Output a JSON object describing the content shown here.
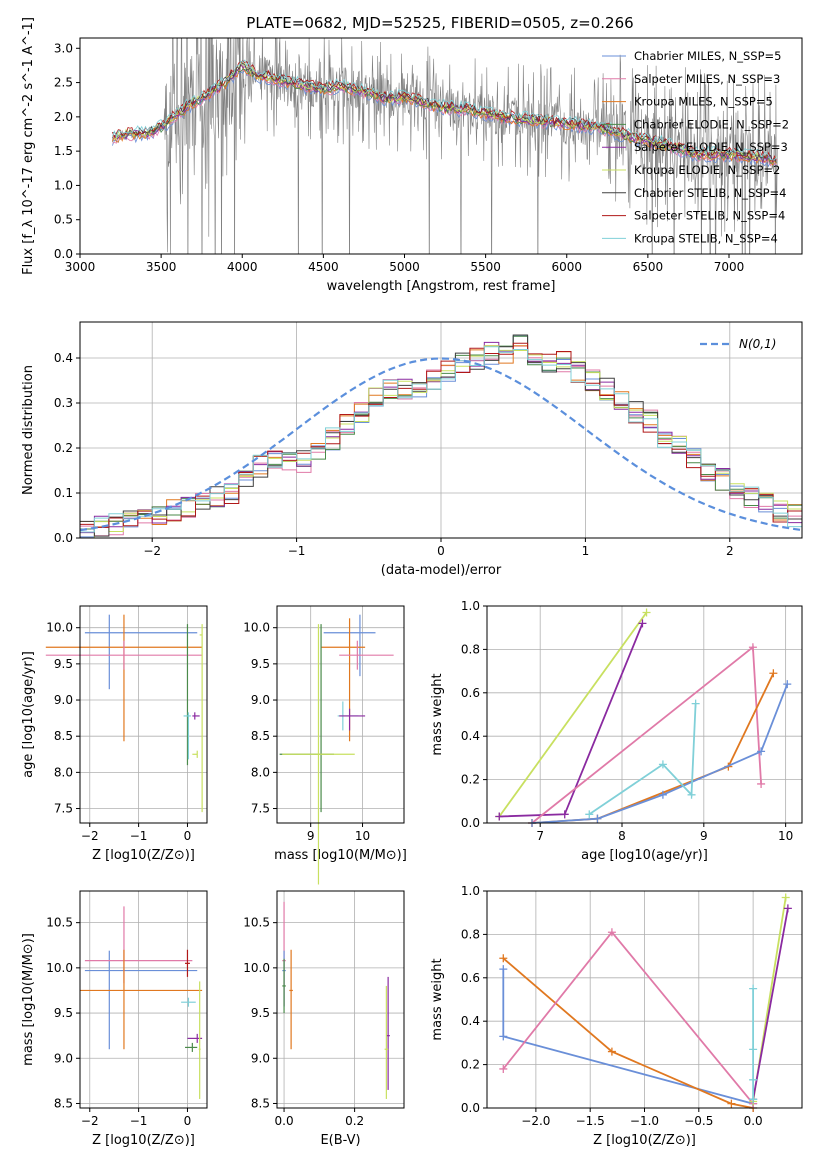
{
  "figure_title": "PLATE=0682, MJD=52525, FIBERID=0505, z=0.266",
  "colors": {
    "cm": "#6a8fd8",
    "sm": "#e07aa8",
    "km": "#e07820",
    "ce": "#4a8a4a",
    "se": "#8a2aa0",
    "ke": "#c8e060",
    "cs": "#404040",
    "ss": "#b01818",
    "ks": "#80d0d8",
    "dashed": "#5b8fdc",
    "data": "#808080"
  },
  "chart_data": [
    {
      "type": "line",
      "title": "PLATE=0682, MJD=52525, FIBERID=0505, z=0.266",
      "xlabel": "wavelength [Angstrom, rest frame]",
      "ylabel": "Flux [f_λ 10^-17 erg cm^-2 s^-1 A^-1]",
      "xlim": [
        3000,
        7450
      ],
      "ylim": [
        0,
        3.15
      ],
      "xticks": [
        "3000",
        "3500",
        "4000",
        "4500",
        "5000",
        "5500",
        "6000",
        "6500",
        "7000"
      ],
      "yticks": [
        "0.0",
        "0.5",
        "1.0",
        "1.5",
        "2.0",
        "2.5",
        "3.0"
      ],
      "legend_loc": "upper-right",
      "series": [
        {
          "name": "Chabrier MILES, N_SSP=5",
          "key": "cm"
        },
        {
          "name": "Salpeter MILES, N_SSP=3",
          "key": "sm"
        },
        {
          "name": "Kroupa MILES, N_SSP=5",
          "key": "km"
        },
        {
          "name": "Chabrier ELODIE, N_SSP=2",
          "key": "ce"
        },
        {
          "name": "Salpeter ELODIE, N_SSP=3",
          "key": "se"
        },
        {
          "name": "Kroupa ELODIE, N_SSP=2",
          "key": "ke"
        },
        {
          "name": "Chabrier STELIB, N_SSP=4",
          "key": "cs"
        },
        {
          "name": "Salpeter STELIB, N_SSP=4",
          "key": "ss"
        },
        {
          "name": "Kroupa STELIB, N_SSP=4",
          "key": "ks"
        }
      ],
      "continuum": {
        "x": [
          3200,
          3300,
          3400,
          3500,
          3600,
          3700,
          3800,
          3900,
          4000,
          4100,
          4200,
          4300,
          4400,
          4500,
          4600,
          4700,
          4800,
          4900,
          5000,
          5200,
          5400,
          5600,
          5800,
          6000,
          6200,
          6400,
          6600,
          6800,
          7000,
          7200,
          7300
        ],
        "y": [
          1.7,
          1.75,
          1.75,
          1.85,
          2.05,
          2.2,
          2.35,
          2.5,
          2.75,
          2.6,
          2.55,
          2.5,
          2.45,
          2.4,
          2.45,
          2.4,
          2.35,
          2.25,
          2.3,
          2.15,
          2.1,
          2.0,
          1.95,
          1.9,
          1.85,
          1.7,
          1.6,
          1.45,
          1.45,
          1.4,
          1.35
        ]
      }
    },
    {
      "type": "histogram",
      "xlabel": "(data-model)/error",
      "ylabel": "Normed distribution",
      "xlim": [
        -2.5,
        2.5
      ],
      "ylim": [
        0,
        0.48
      ],
      "xticks": [
        "−2",
        "−1",
        "0",
        "1",
        "2"
      ],
      "yticks": [
        "0.0",
        "0.1",
        "0.2",
        "0.3",
        "0.4"
      ],
      "legend": "N(0,1)",
      "bin_width": 0.1,
      "base_bins": [
        0.02,
        0.025,
        0.03,
        0.035,
        0.045,
        0.05,
        0.06,
        0.07,
        0.085,
        0.09,
        0.1,
        0.13,
        0.16,
        0.18,
        0.17,
        0.17,
        0.19,
        0.22,
        0.25,
        0.28,
        0.31,
        0.33,
        0.33,
        0.33,
        0.35,
        0.37,
        0.39,
        0.4,
        0.41,
        0.41,
        0.43,
        0.4,
        0.39,
        0.39,
        0.37,
        0.35,
        0.33,
        0.31,
        0.28,
        0.26,
        0.22,
        0.21,
        0.18,
        0.15,
        0.13,
        0.1,
        0.09,
        0.08,
        0.06,
        0.05
      ]
    },
    {
      "type": "errorbar",
      "xlabel": "Z [log10(Z/Z⊙)]",
      "ylabel": "age  [log10(age/yr)]",
      "xlim": [
        -2.2,
        0.4
      ],
      "ylim": [
        7.3,
        10.3
      ],
      "xticks": [
        "−2",
        "−1",
        "0"
      ],
      "yticks": [
        "7.5",
        "8.0",
        "8.5",
        "9.0",
        "9.5",
        "10.0"
      ]
    },
    {
      "type": "errorbar",
      "xlabel": "mass [log10(M/M⊙)]",
      "ylabel": "",
      "xlim": [
        8.35,
        10.8
      ],
      "ylim": [
        7.3,
        10.3
      ],
      "xticks": [
        "9",
        "10"
      ],
      "yticks": [
        "7.5",
        "8.0",
        "8.5",
        "9.0",
        "9.5",
        "10.0"
      ]
    },
    {
      "type": "line",
      "xlabel": "age  [log10(age/yr)]",
      "ylabel": "mass weight",
      "xlim": [
        6.35,
        10.2
      ],
      "ylim": [
        0,
        1.0
      ],
      "xticks": [
        "7",
        "8",
        "9",
        "10"
      ],
      "yticks": [
        "0.0",
        "0.2",
        "0.4",
        "0.6",
        "0.8",
        "1.0"
      ]
    },
    {
      "type": "errorbar",
      "xlabel": "Z [log10(Z/Z⊙)]",
      "ylabel": "mass [log10(M/M⊙)]",
      "xlim": [
        -2.2,
        0.4
      ],
      "ylim": [
        8.45,
        10.85
      ],
      "xticks": [
        "−2",
        "−1",
        "0"
      ],
      "yticks": [
        "8.5",
        "9.0",
        "9.5",
        "10.0",
        "10.5"
      ]
    },
    {
      "type": "errorbar",
      "xlabel": "E(B-V)",
      "ylabel": "",
      "xlim": [
        -0.02,
        0.34
      ],
      "ylim": [
        8.45,
        10.85
      ],
      "xticks": [
        "0.0",
        "0.2"
      ],
      "yticks": [
        "8.5",
        "9.0",
        "9.5",
        "10.0",
        "10.5"
      ]
    },
    {
      "type": "line",
      "xlabel": "Z [log10(Z/Z⊙)]",
      "ylabel": "mass weight",
      "xlim": [
        -2.45,
        0.45
      ],
      "ylim": [
        0,
        1.0
      ],
      "xticks": [
        "−2.0",
        "−1.5",
        "−1.0",
        "−0.5",
        "0.0"
      ],
      "yticks": [
        "0.0",
        "0.2",
        "0.4",
        "0.6",
        "0.8",
        "1.0"
      ]
    }
  ]
}
